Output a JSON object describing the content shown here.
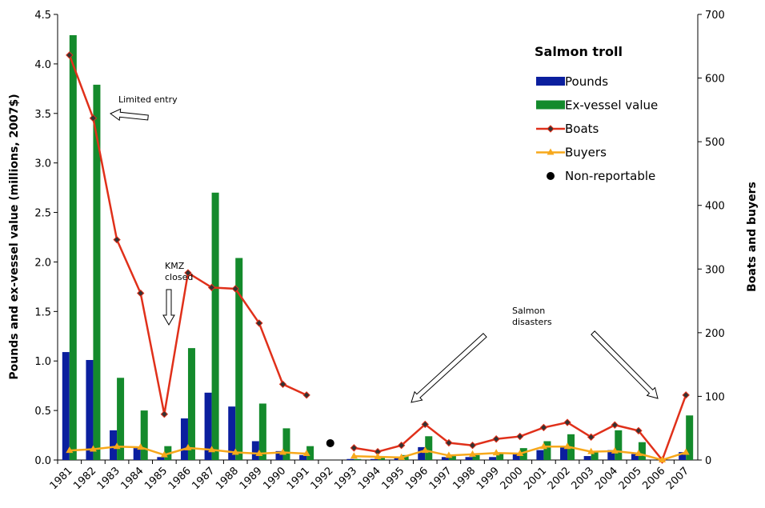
{
  "chart_data": {
    "type": "bar-line",
    "y_label": "Pounds and ex-vessel value (millions, 2007$)",
    "y2_label": "Boats and buyers",
    "legend_title": "Salmon troll",
    "categories": [
      "1981",
      "1982",
      "1983",
      "1984",
      "1985",
      "1986",
      "1987",
      "1988",
      "1989",
      "1990",
      "1991",
      "1992",
      "1993",
      "1994",
      "1995",
      "1996",
      "1997",
      "1998",
      "1999",
      "2000",
      "2001",
      "2002",
      "2003",
      "2004",
      "2005",
      "2006",
      "2007"
    ],
    "series": [
      {
        "name": "Pounds",
        "type": "bar",
        "color": "#0b1f9e",
        "values": [
          1.09,
          1.01,
          0.3,
          0.12,
          0.03,
          0.42,
          0.68,
          0.54,
          0.19,
          0.09,
          0.05,
          null,
          0.01,
          0.01,
          0.02,
          0.13,
          0.03,
          0.03,
          0.03,
          0.06,
          0.1,
          0.13,
          0.04,
          0.1,
          0.06,
          0,
          0.08
        ]
      },
      {
        "name": "Ex-vessel value",
        "type": "bar",
        "color": "#148a2c",
        "values": [
          4.29,
          3.79,
          0.83,
          0.5,
          0.14,
          1.13,
          2.7,
          2.04,
          0.57,
          0.32,
          0.14,
          null,
          0.01,
          0.02,
          0.05,
          0.24,
          0.05,
          0.05,
          0.07,
          0.12,
          0.19,
          0.26,
          0.08,
          0.3,
          0.18,
          0,
          0.45
        ]
      },
      {
        "name": "Boats",
        "type": "line",
        "marker": "diamond",
        "axis": "y2",
        "color": "#e0301a",
        "values": [
          636,
          537,
          346,
          262,
          72,
          294,
          271,
          269,
          215,
          119,
          102,
          null,
          19,
          13,
          23,
          56,
          27,
          23,
          33,
          37,
          51,
          59,
          36,
          55,
          46,
          0,
          102
        ]
      },
      {
        "name": "Buyers",
        "type": "line",
        "marker": "triangle",
        "axis": "y2",
        "color": "#f7a81b",
        "values": [
          15,
          17,
          21,
          20,
          8,
          19,
          16,
          12,
          10,
          12,
          10,
          null,
          6,
          5,
          4,
          15,
          7,
          9,
          11,
          10,
          21,
          21,
          13,
          14,
          10,
          0,
          12
        ]
      },
      {
        "name": "Non-reportable",
        "type": "scatter",
        "marker": "circle",
        "color": "#000000",
        "values": [
          null,
          null,
          null,
          null,
          null,
          null,
          null,
          null,
          null,
          null,
          null,
          0.17,
          null,
          null,
          null,
          null,
          null,
          null,
          null,
          null,
          null,
          null,
          null,
          null,
          null,
          null,
          null
        ]
      }
    ],
    "ylim": [
      0,
      4.5
    ],
    "yticks": [
      {
        "value": 0,
        "label": "0.0"
      },
      0.5,
      {
        "value": 1,
        "label": "1.0"
      },
      1.5,
      {
        "value": 2,
        "label": "2.0"
      },
      2.5,
      {
        "value": 3,
        "label": "3.0"
      },
      3.5,
      {
        "value": 4,
        "label": "4.0"
      },
      4.5
    ],
    "y2lim": [
      0,
      700
    ],
    "y2ticks": [
      0,
      100,
      200,
      300,
      400,
      500,
      600,
      700
    ],
    "annotations": [
      {
        "lines": [
          "Limited entry"
        ]
      },
      {
        "lines": [
          "KMZ",
          "closed"
        ]
      },
      {
        "lines": [
          "Salmon",
          "disasters"
        ]
      }
    ]
  }
}
